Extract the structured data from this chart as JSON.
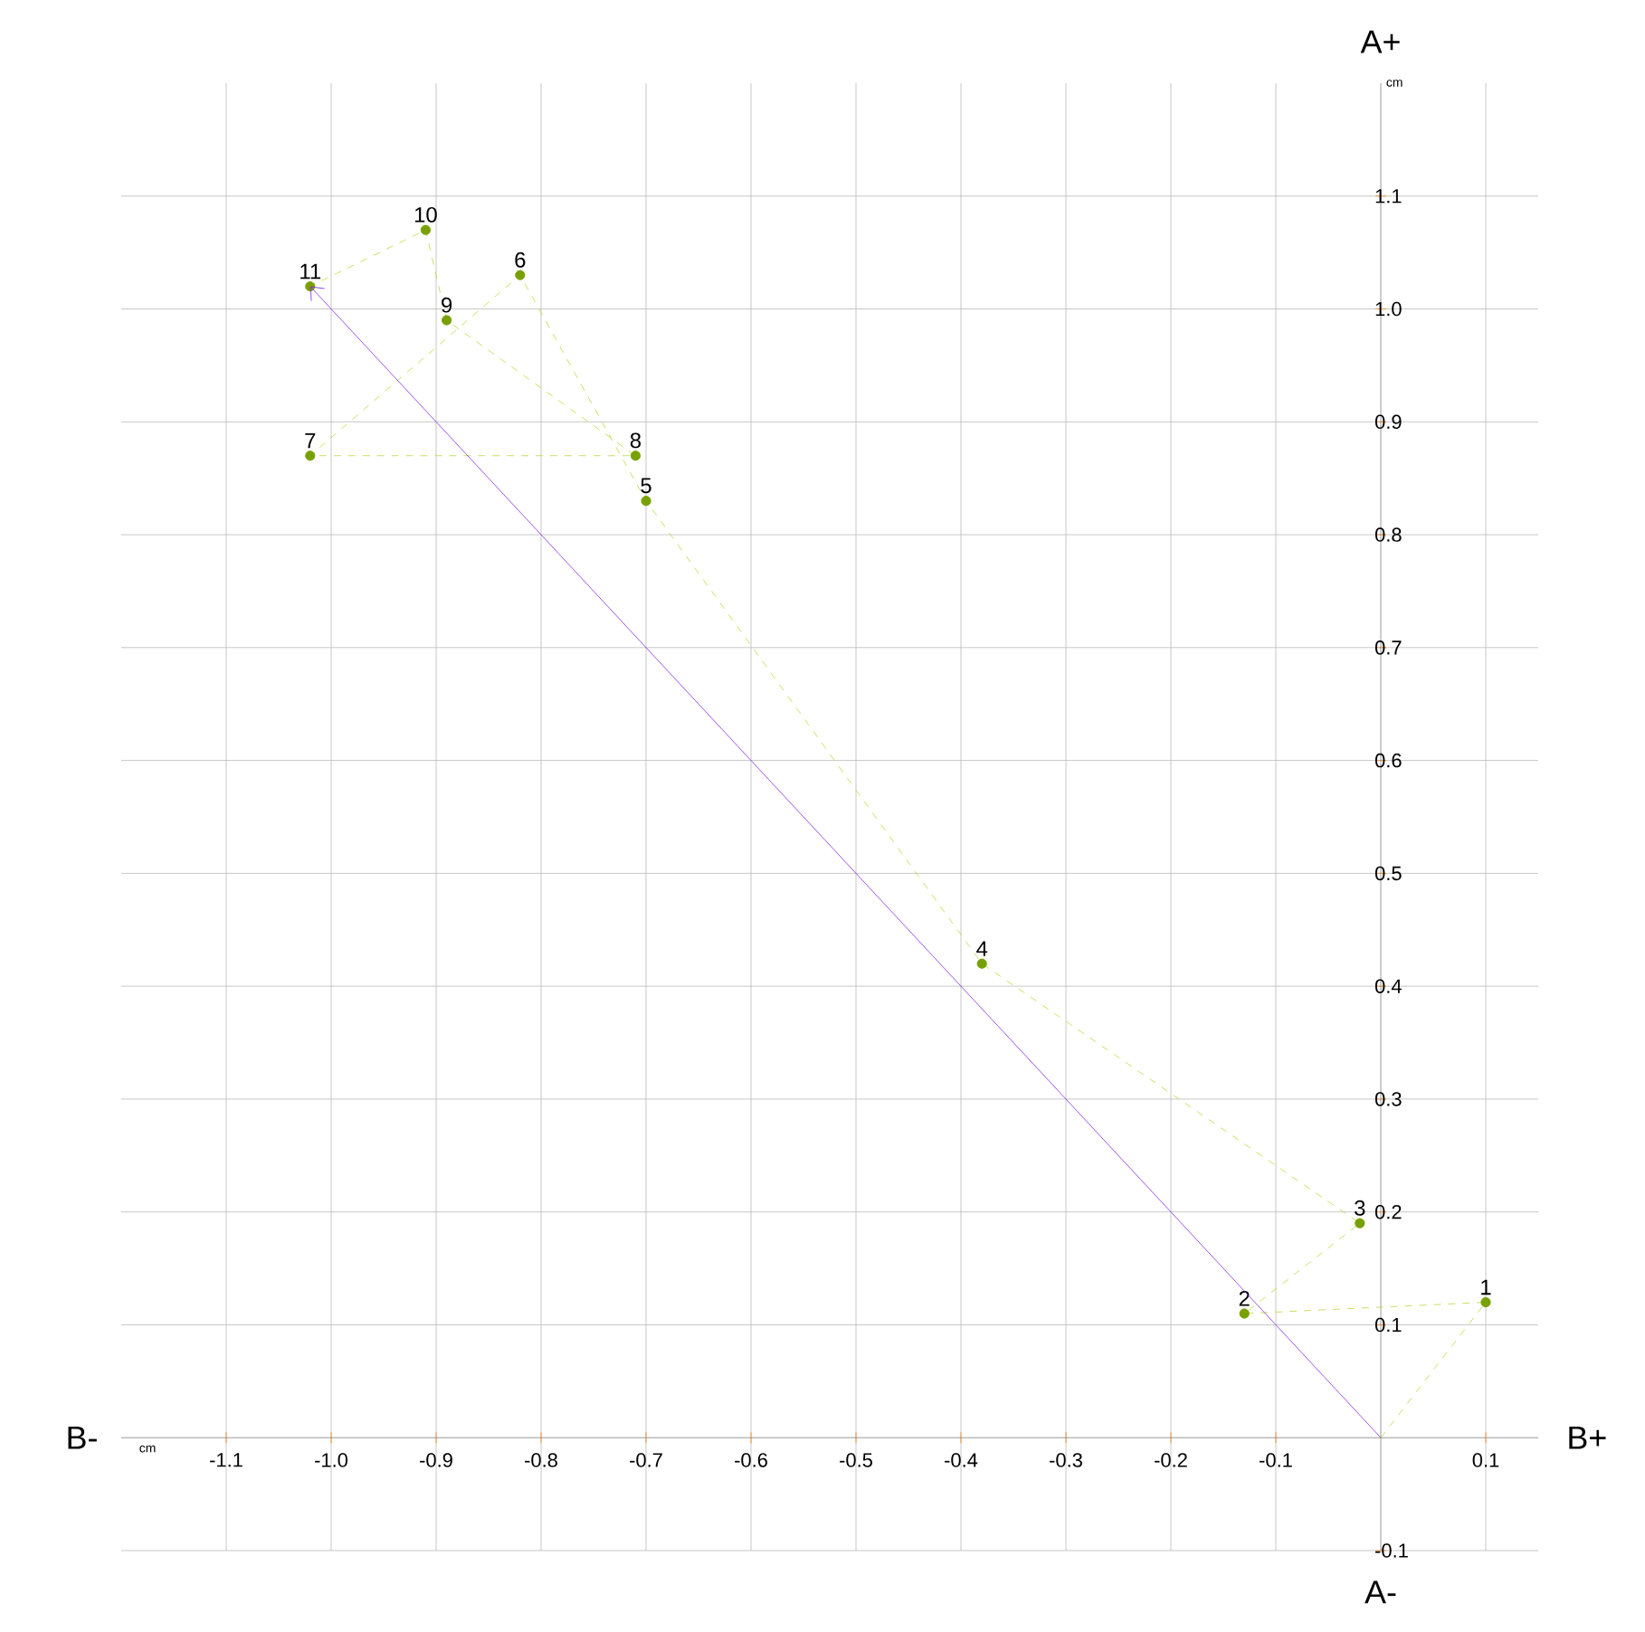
{
  "chart_data": {
    "type": "scatter",
    "xlim": [
      -1.2,
      0.15
    ],
    "ylim": [
      -0.1,
      1.2
    ],
    "xticks": [
      -1.1,
      {
        "value": -1,
        "label": "-1.0"
      },
      -0.9,
      -0.8,
      -0.7,
      -0.6,
      -0.5,
      -0.4,
      -0.3,
      -0.2,
      -0.1,
      0.1
    ],
    "yticks": [
      -0.1,
      0.1,
      0.2,
      0.3,
      0.4,
      0.5,
      0.6,
      0.7,
      0.8,
      0.9,
      {
        "value": 1,
        "label": "1.0"
      },
      1.1
    ],
    "grid": true,
    "series": [
      {
        "type": "line",
        "color": "#b5dc3a",
        "line_style": "dashed",
        "marker": "none",
        "x": [
          0,
          0.1,
          -0.13,
          -0.02,
          -0.38,
          -0.7,
          -0.82,
          -1.02,
          -0.71,
          -0.89,
          -0.91,
          -1.02
        ],
        "values": [
          0,
          0.12,
          0.11,
          0.19,
          0.42,
          0.83,
          1.03,
          0.87,
          0.87,
          0.99,
          1.07,
          1.02
        ]
      },
      {
        "color": "#77a000",
        "marker": "circle",
        "x": [
          0.1,
          -0.13,
          -0.02,
          -0.38,
          -0.7,
          -0.82,
          -1.02,
          -0.71,
          -0.89,
          -0.91,
          -1.02
        ],
        "values": [
          0.12,
          0.11,
          0.19,
          0.42,
          0.83,
          1.03,
          0.87,
          0.87,
          0.99,
          1.07,
          1.02
        ]
      }
    ],
    "annotations": [
      {
        "text": "1",
        "x": 0.1,
        "y": 0.12
      },
      {
        "text": "2",
        "x": -0.13,
        "y": 0.11
      },
      {
        "text": "3",
        "x": -0.02,
        "y": 0.19
      },
      {
        "text": "4",
        "x": -0.38,
        "y": 0.42
      },
      {
        "text": "5",
        "x": -0.7,
        "y": 0.83
      },
      {
        "text": "6",
        "x": -0.82,
        "y": 1.03
      },
      {
        "text": "7",
        "x": -1.02,
        "y": 0.87
      },
      {
        "text": "8",
        "x": -0.71,
        "y": 0.87
      },
      {
        "text": "9",
        "x": -0.89,
        "y": 0.99
      },
      {
        "text": "10",
        "x": -0.91,
        "y": 1.07
      },
      {
        "text": "11",
        "x": -1.02,
        "y": 1.02
      },
      "B-",
      "B+",
      "A+",
      "A-",
      "cm",
      "cm"
    ]
  }
}
